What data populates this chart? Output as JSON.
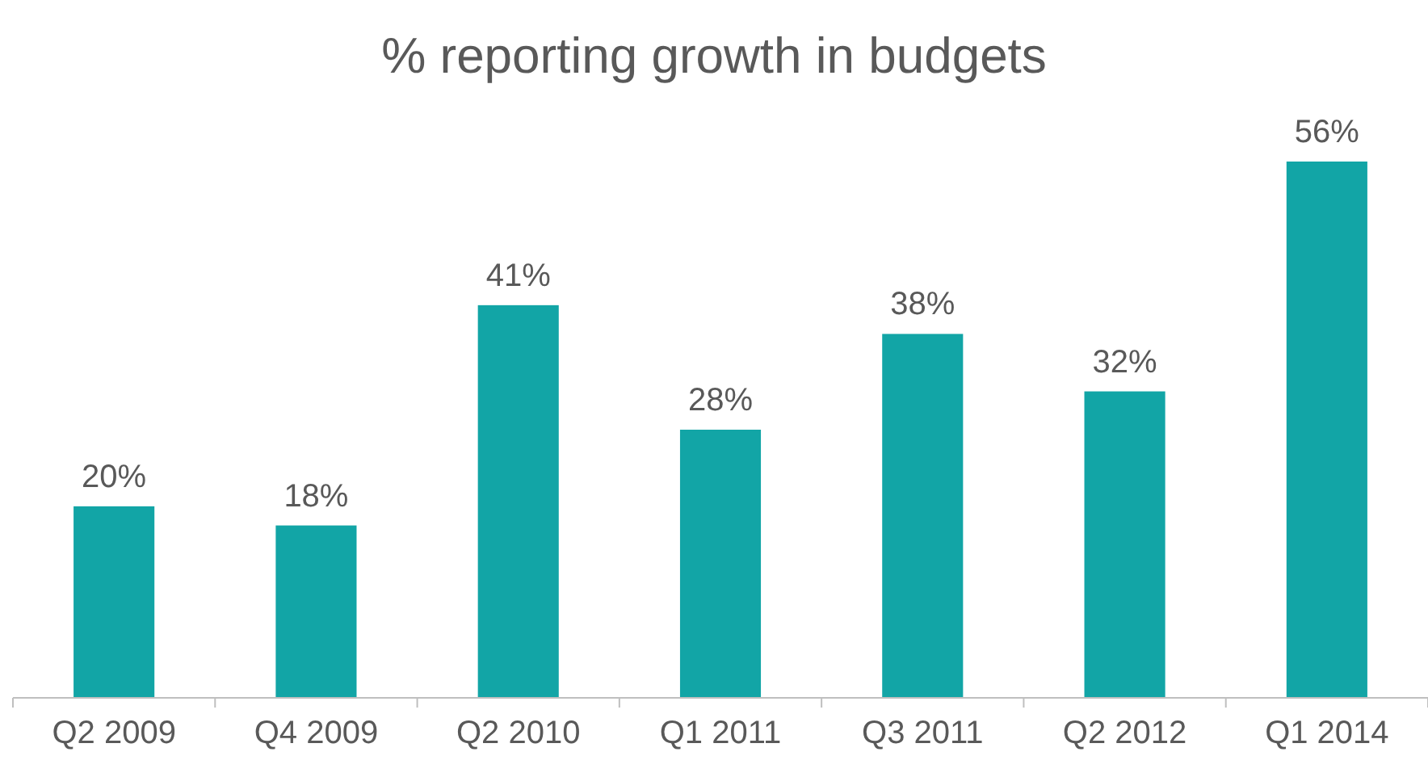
{
  "chart_data": {
    "type": "bar",
    "title": "% reporting growth in budgets",
    "categories": [
      "Q2 2009",
      "Q4 2009",
      "Q2 2010",
      "Q1 2011",
      "Q3 2011",
      "Q2 2012",
      "Q1 2014"
    ],
    "values": [
      20,
      18,
      41,
      28,
      38,
      32,
      56
    ],
    "value_labels": [
      "20%",
      "18%",
      "41%",
      "28%",
      "38%",
      "32%",
      "56%"
    ],
    "color": "#12a5a6"
  }
}
